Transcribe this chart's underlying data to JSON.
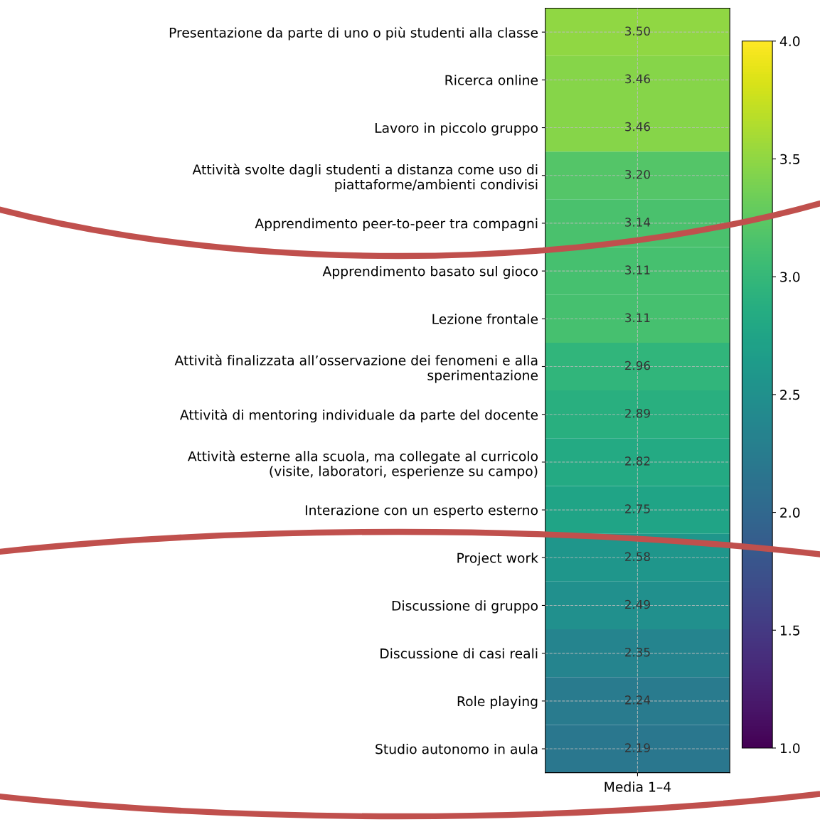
{
  "chart_data": {
    "type": "heatmap",
    "xlabel": "Media 1–4",
    "categories": [
      null
    ],
    "y_categories": [
      "Presentazione da parte di uno o più studenti alla classe",
      "Ricerca online",
      "Lavoro in piccolo gruppo",
      "Attività svolte dagli studenti a distanza come uso di\npiattaforme/ambienti condivisi",
      "Apprendimento peer-to-peer tra compagni",
      "Apprendimento basato sul gioco",
      "Lezione frontale",
      "Attività finalizzata all’osservazione dei fenomeni e alla\nsperimentazione",
      "Attività di mentoring individuale da parte del docente",
      "Attività esterne alla scuola, ma collegate al curricolo\n(visite, laboratori, esperienze su campo)",
      "Interazione con un esperto esterno",
      "Project work",
      "Discussione di gruppo",
      "Discussione di casi reali",
      "Role playing",
      "Studio autonomo in aula"
    ],
    "cells": [
      [
        3.5
      ],
      [
        3.46
      ],
      [
        3.46
      ],
      [
        3.2
      ],
      [
        3.14
      ],
      [
        3.11
      ],
      [
        3.11
      ],
      [
        2.96
      ],
      [
        2.89
      ],
      [
        2.82
      ],
      [
        2.75
      ],
      [
        2.58
      ],
      [
        2.49
      ],
      [
        2.35
      ],
      [
        2.24
      ],
      [
        2.19
      ]
    ],
    "cell_labels": [
      [
        "3.50"
      ],
      [
        "3.46"
      ],
      [
        "3.46"
      ],
      [
        "3.20"
      ],
      [
        "3.14"
      ],
      [
        "3.11"
      ],
      [
        "3.11"
      ],
      [
        "2.96"
      ],
      [
        "2.89"
      ],
      [
        "2.82"
      ],
      [
        "2.75"
      ],
      [
        "2.58"
      ],
      [
        "2.49"
      ],
      [
        "2.35"
      ],
      [
        "2.24"
      ],
      [
        "2.19"
      ]
    ],
    "clim": [
      1,
      4
    ],
    "cticks": [
      {
        "value": 1.0,
        "label": "1.0"
      },
      {
        "value": 1.5,
        "label": "1.5"
      },
      {
        "value": 2.0,
        "label": "2.0"
      },
      {
        "value": 2.5,
        "label": "2.5"
      },
      {
        "value": 3.0,
        "label": "3.0"
      },
      {
        "value": 3.5,
        "label": "3.5"
      },
      {
        "value": 4.0,
        "label": "4.0"
      }
    ],
    "grid": true
  }
}
